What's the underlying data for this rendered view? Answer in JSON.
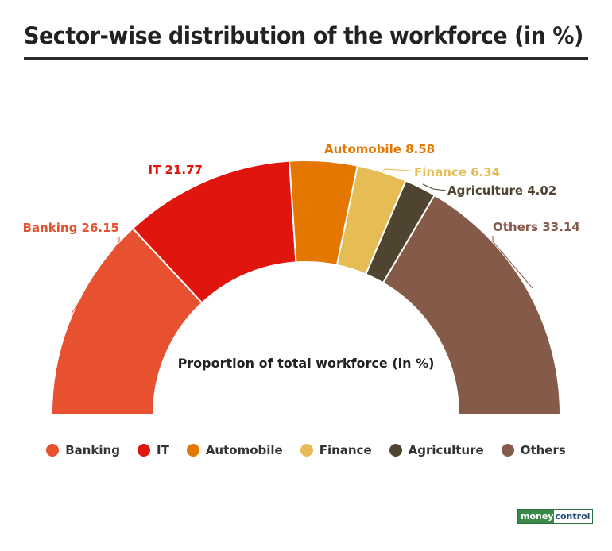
{
  "title": "Sector-wise distribution of the workforce (in %)",
  "center_label": "Proportion of total workforce (in %)",
  "logo": {
    "part1": "money",
    "part2": "control"
  },
  "chart_data": {
    "type": "pie",
    "variant": "semi-donut",
    "title": "Sector-wise distribution of the workforce (in %)",
    "center_label": "Proportion of total workforce (in %)",
    "legend_position": "bottom",
    "series": [
      {
        "name": "Banking",
        "value": 26.15,
        "color": "#e8512f",
        "label": "Banking 26.15"
      },
      {
        "name": "IT",
        "value": 21.77,
        "color": "#e0150e",
        "label": "IT 21.77"
      },
      {
        "name": "Automobile",
        "value": 8.58,
        "color": "#e37700",
        "label": "Automobile 8.58"
      },
      {
        "name": "Finance",
        "value": 6.34,
        "color": "#e6bc55",
        "label": "Finance 6.34"
      },
      {
        "name": "Agriculture",
        "value": 4.02,
        "color": "#4f4430",
        "label": "Agriculture 4.02"
      },
      {
        "name": "Others",
        "value": 33.14,
        "color": "#855a48",
        "label": "Others 33.14"
      }
    ]
  }
}
